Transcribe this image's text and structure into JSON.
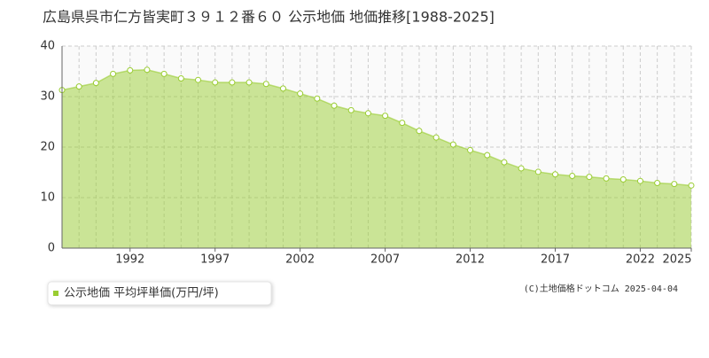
{
  "chart_data": {
    "type": "area",
    "title": "広島県呉市仁方皆実町３９１２番６０ 公示地価 地価推移[1988-2025]",
    "x": [
      1988,
      1989,
      1990,
      1991,
      1992,
      1993,
      1994,
      1995,
      1996,
      1997,
      1998,
      1999,
      2000,
      2001,
      2002,
      2003,
      2004,
      2005,
      2006,
      2007,
      2008,
      2009,
      2010,
      2011,
      2012,
      2013,
      2014,
      2015,
      2016,
      2017,
      2018,
      2019,
      2020,
      2021,
      2022,
      2023,
      2024,
      2025
    ],
    "series": [
      {
        "name": "公示地価 平均坪単価(万円/坪)",
        "color": "#9acd32",
        "values": [
          31.3,
          32.0,
          32.7,
          34.5,
          35.2,
          35.3,
          34.5,
          33.6,
          33.3,
          32.8,
          32.8,
          32.8,
          32.5,
          31.6,
          30.6,
          29.6,
          28.2,
          27.3,
          26.7,
          26.2,
          24.8,
          23.2,
          21.9,
          20.5,
          19.4,
          18.4,
          17.0,
          15.8,
          15.1,
          14.6,
          14.3,
          14.1,
          13.8,
          13.6,
          13.3,
          12.9,
          12.7,
          12.4
        ]
      }
    ],
    "xlim": [
      1988,
      2025
    ],
    "xticks": [
      1992,
      1997,
      2002,
      2007,
      2012,
      2017,
      2022,
      2025
    ],
    "ylim": [
      0,
      40
    ],
    "yticks": [
      0,
      10,
      20,
      30,
      40
    ],
    "grid": true,
    "copyright": "(C)土地価格ドットコム 2025-04-04"
  }
}
